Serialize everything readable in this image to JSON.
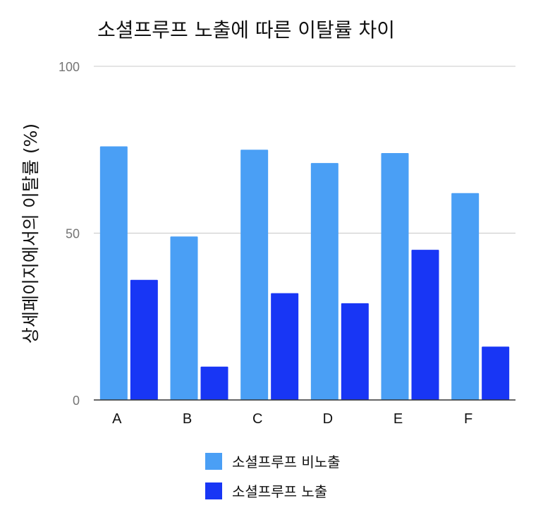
{
  "chart_data": {
    "type": "bar",
    "title": "소셜프루프 노출에 따른 이탈률 차이",
    "xlabel": "",
    "ylabel": "상세페이지에서의 이탈률 (%)",
    "categories": [
      "A",
      "B",
      "C",
      "D",
      "E",
      "F"
    ],
    "series": [
      {
        "name": "소셜프루프 비노출",
        "color": "#4a9ff5",
        "values": [
          76,
          49,
          75,
          71,
          74,
          62
        ]
      },
      {
        "name": "소셜프루프 노출",
        "color": "#1836f5",
        "values": [
          36,
          10,
          32,
          29,
          45,
          16
        ]
      }
    ],
    "ylim": [
      0,
      100
    ],
    "yticks": [
      0,
      50,
      100
    ],
    "grid": true,
    "legend": "bottom-center"
  }
}
